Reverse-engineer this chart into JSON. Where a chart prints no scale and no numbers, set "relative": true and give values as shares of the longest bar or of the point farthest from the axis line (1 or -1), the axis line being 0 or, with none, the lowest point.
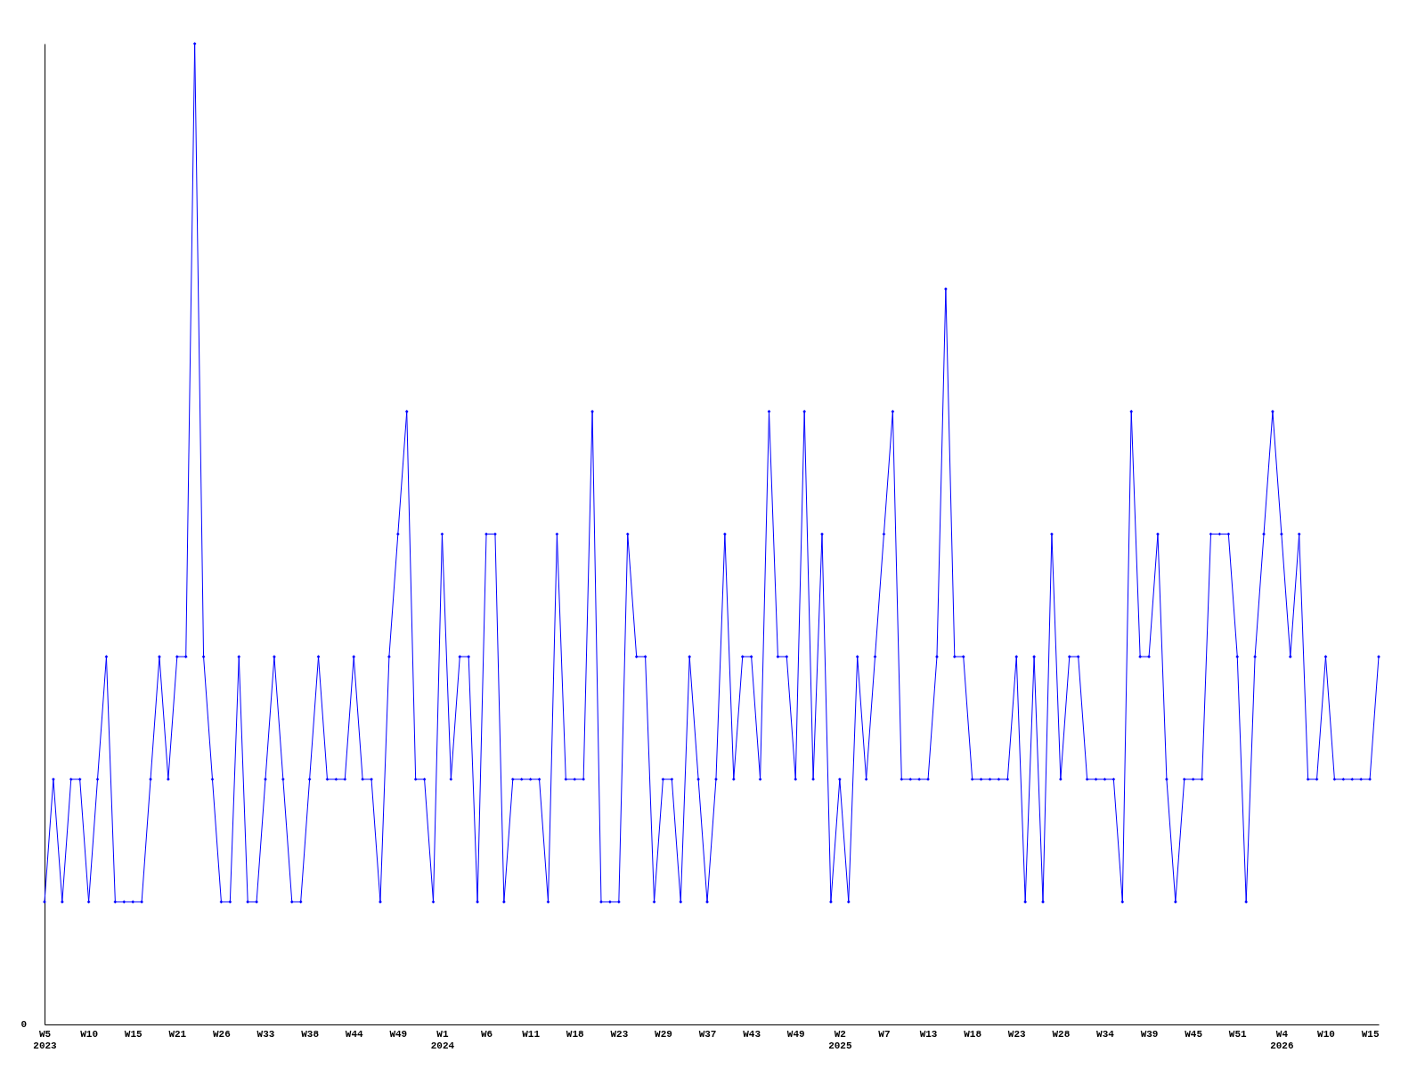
{
  "chart_data": {
    "type": "line",
    "relative": true,
    "marker": "diamond",
    "line_style": "solid",
    "grid": false,
    "categories": [
      "W5\n2023",
      null,
      null,
      null,
      null,
      "W10",
      null,
      null,
      null,
      null,
      "W15",
      null,
      null,
      null,
      null,
      "W21",
      null,
      null,
      null,
      null,
      "W26",
      null,
      null,
      null,
      null,
      "W33",
      null,
      null,
      null,
      null,
      "W38",
      null,
      null,
      null,
      null,
      "W44",
      null,
      null,
      null,
      null,
      "W49",
      null,
      null,
      null,
      null,
      "W1\n2024",
      null,
      null,
      null,
      null,
      "W6",
      null,
      null,
      null,
      null,
      "W11",
      null,
      null,
      null,
      null,
      "W18",
      null,
      null,
      null,
      null,
      "W23",
      null,
      null,
      null,
      null,
      "W29",
      null,
      null,
      null,
      null,
      "W37",
      null,
      null,
      null,
      null,
      "W43",
      null,
      null,
      null,
      null,
      "W49",
      null,
      null,
      null,
      null,
      "W2\n2025",
      null,
      null,
      null,
      null,
      "W7",
      null,
      null,
      null,
      null,
      "W13",
      null,
      null,
      null,
      null,
      "W18",
      null,
      null,
      null,
      null,
      "W23",
      null,
      null,
      null,
      null,
      "W28",
      null,
      null,
      null,
      null,
      "W34",
      null,
      null,
      null,
      null,
      "W39",
      null,
      null,
      null,
      null,
      "W45",
      null,
      null,
      null,
      null,
      "W51",
      null,
      null,
      null,
      null,
      "W4\n2026",
      null,
      null,
      null,
      null,
      "W10",
      null,
      null,
      null,
      null,
      "W15",
      null
    ],
    "series": [
      {
        "color": "#0000ff",
        "values": [
          0.125,
          0.25,
          0.125,
          0.25,
          0.25,
          0.125,
          0.25,
          0.375,
          0.125,
          0.125,
          0.125,
          0.125,
          0.25,
          0.375,
          0.25,
          0.375,
          0.375,
          1,
          0.375,
          0.25,
          0.125,
          0.125,
          0.375,
          0.125,
          0.125,
          0.25,
          0.375,
          0.25,
          0.125,
          0.125,
          0.25,
          0.375,
          0.25,
          0.25,
          0.25,
          0.375,
          0.25,
          0.25,
          0.125,
          0.375,
          0.5,
          0.625,
          0.25,
          0.25,
          0.125,
          0.5,
          0.25,
          0.375,
          0.375,
          0.125,
          0.5,
          0.5,
          0.125,
          0.25,
          0.25,
          0.25,
          0.25,
          0.125,
          0.5,
          0.25,
          0.25,
          0.25,
          0.625,
          0.125,
          0.125,
          0.125,
          0.5,
          0.375,
          0.375,
          0.125,
          0.25,
          0.25,
          0.125,
          0.375,
          0.25,
          0.125,
          0.25,
          0.5,
          0.25,
          0.375,
          0.375,
          0.25,
          0.625,
          0.375,
          0.375,
          0.25,
          0.625,
          0.25,
          0.5,
          0.125,
          0.25,
          0.125,
          0.375,
          0.25,
          0.375,
          0.5,
          0.625,
          0.25,
          0.25,
          0.25,
          0.25,
          0.375,
          0.75,
          0.375,
          0.375,
          0.25,
          0.25,
          0.25,
          0.25,
          0.25,
          0.375,
          0.125,
          0.375,
          0.125,
          0.5,
          0.25,
          0.375,
          0.375,
          0.25,
          0.25,
          0.25,
          0.25,
          0.125,
          0.625,
          0.375,
          0.375,
          0.5,
          0.25,
          0.125,
          0.25,
          0.25,
          0.25,
          0.5,
          0.5,
          0.5,
          0.375,
          0.125,
          0.375,
          0.5,
          0.625,
          0.5,
          0.375,
          0.5,
          0.25,
          0.25,
          0.375,
          0.25,
          0.25,
          0.25,
          0.25,
          0.25,
          0.375
        ]
      }
    ],
    "annotations": [
      "0"
    ]
  }
}
